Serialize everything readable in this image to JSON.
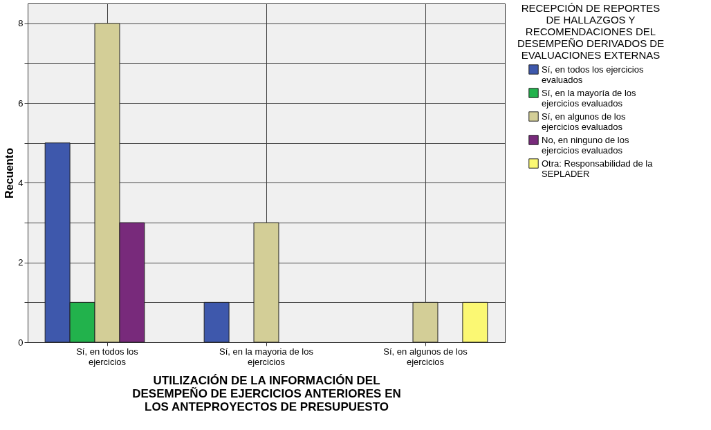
{
  "chart_data": {
    "type": "bar",
    "xlabel": "UTILIZACIÓN DE LA INFORMACIÓN DEL DESEMPEÑO DE EJERCICIOS ANTERIORES EN LOS ANTEPROYECTOS DE PRESUPUESTO",
    "ylabel": "Recuento",
    "legend_title": "RECEPCIÓN DE REPORTES DE HALLAZGOS Y RECOMENDACIONES DEL DESEMPEÑO DERIVADOS DE EVALUACIONES EXTERNAS",
    "categories": [
      "Sí, en todos los ejercicios",
      "Sí, en la mayoria de los ejercicios",
      "Sí, en algunos de los ejercicios"
    ],
    "series": [
      {
        "name": "Sí, en todos los ejercicios evaluados",
        "color": "#3e58ac",
        "values": [
          5,
          1,
          null
        ]
      },
      {
        "name": "Sí, en la mayoría de los ejercicios evaluados",
        "color": "#22b24c",
        "values": [
          1,
          null,
          null
        ]
      },
      {
        "name": "Sí, en algunos de los ejercicios evaluados",
        "color": "#d3ce97",
        "values": [
          8,
          3,
          1
        ]
      },
      {
        "name": "No, en ninguno de los ejercicios evaluados",
        "color": "#782a7b",
        "values": [
          3,
          null,
          null
        ]
      },
      {
        "name": "Otra: Responsabilidad de la SEPLADER",
        "color": "#fbf873",
        "values": [
          null,
          null,
          1
        ]
      }
    ],
    "ylim": [
      0,
      8.5
    ],
    "yticks": [
      0,
      {
        "value": 1,
        "label": null
      },
      2,
      {
        "value": 3,
        "label": null
      },
      4,
      {
        "value": 5,
        "label": null
      },
      6,
      {
        "value": 7,
        "label": null
      },
      8
    ],
    "grid": true,
    "legend": "top right"
  }
}
